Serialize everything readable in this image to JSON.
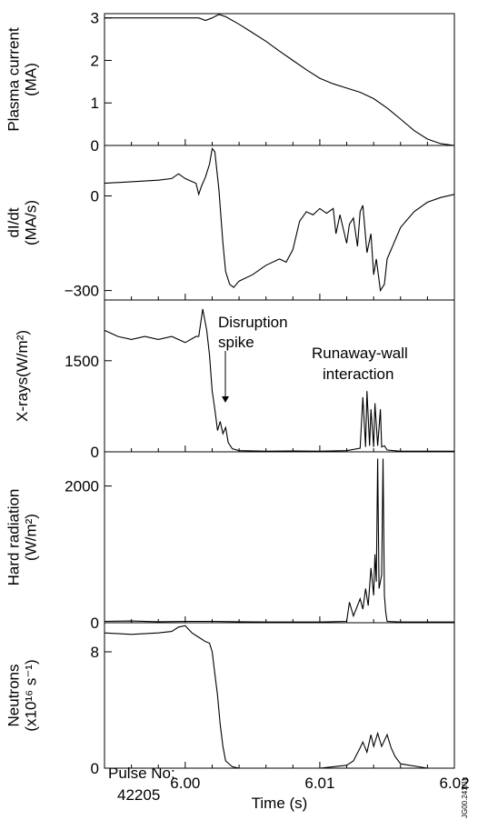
{
  "credit": "JG00.241/1c",
  "chart_data": [
    {
      "type": "line",
      "ylabel_lines": [
        "Plasma current",
        "(MA)"
      ],
      "ylim": [
        0,
        3.1
      ],
      "yticks": [
        0,
        1,
        2,
        3
      ],
      "ytick_labels": [
        "0",
        "1",
        "2",
        "3"
      ],
      "x": [
        5.994,
        5.9955,
        5.997,
        5.9985,
        6.0,
        6.001,
        6.0015,
        6.002,
        6.0025,
        6.003,
        6.004,
        6.005,
        6.006,
        6.007,
        6.008,
        6.009,
        6.01,
        6.011,
        6.012,
        6.013,
        6.014,
        6.015,
        6.016,
        6.017,
        6.018,
        6.019,
        6.02
      ],
      "values": [
        3.0,
        3.0,
        3.0,
        3.0,
        3.0,
        3.0,
        2.94,
        3.0,
        3.08,
        3.03,
        2.85,
        2.65,
        2.45,
        2.22,
        2.0,
        1.78,
        1.58,
        1.45,
        1.35,
        1.25,
        1.1,
        0.88,
        0.62,
        0.35,
        0.15,
        0.04,
        0.0
      ]
    },
    {
      "type": "line",
      "ylabel_lines": [
        "dI/dt",
        "(MA/s)"
      ],
      "ylim": [
        -330,
        160
      ],
      "yticks": [
        0,
        -300
      ],
      "ytick_labels": [
        "0",
        "−300"
      ],
      "x": [
        5.994,
        5.996,
        5.998,
        5.999,
        5.9995,
        6.0,
        6.0008,
        6.001,
        6.0012,
        6.0015,
        6.0018,
        6.002,
        6.0022,
        6.0025,
        6.0028,
        6.003,
        6.0033,
        6.0036,
        6.004,
        6.005,
        6.006,
        6.007,
        6.0075,
        6.008,
        6.0085,
        6.009,
        6.0095,
        6.01,
        6.0105,
        6.011,
        6.0112,
        6.0115,
        6.012,
        6.0122,
        6.0125,
        6.0128,
        6.013,
        6.0132,
        6.0135,
        6.0138,
        6.014,
        6.0142,
        6.0145,
        6.0148,
        6.015,
        6.016,
        6.017,
        6.018,
        6.019,
        6.02
      ],
      "values": [
        40,
        45,
        50,
        55,
        70,
        55,
        40,
        5,
        30,
        60,
        100,
        150,
        140,
        20,
        -150,
        -240,
        -280,
        -290,
        -270,
        -250,
        -220,
        -200,
        -210,
        -170,
        -80,
        -50,
        -60,
        -40,
        -55,
        -40,
        -120,
        -60,
        -150,
        -90,
        -70,
        -160,
        -50,
        -30,
        -180,
        -120,
        -250,
        -200,
        -300,
        -280,
        -200,
        -100,
        -50,
        -20,
        -5,
        5
      ]
    },
    {
      "type": "line",
      "ylabel_html": "X-rays(W/m²)",
      "ylim": [
        0,
        2500
      ],
      "yticks": [
        0,
        1500
      ],
      "ytick_labels": [
        "0",
        "1500"
      ],
      "x": [
        5.994,
        5.995,
        5.996,
        5.997,
        5.998,
        5.999,
        6.0,
        6.0008,
        6.001,
        6.0013,
        6.0016,
        6.0018,
        6.002,
        6.0022,
        6.0024,
        6.0026,
        6.0028,
        6.003,
        6.0032,
        6.0035,
        6.004,
        6.006,
        6.008,
        6.01,
        6.012,
        6.013,
        6.0132,
        6.0134,
        6.0135,
        6.0137,
        6.0138,
        6.014,
        6.0141,
        6.0143,
        6.0145,
        6.0146,
        6.0148,
        6.015,
        6.016,
        6.018,
        6.02
      ],
      "values": [
        2000,
        1900,
        1850,
        1900,
        1850,
        1900,
        1800,
        1900,
        1900,
        2350,
        2000,
        1600,
        1000,
        700,
        350,
        500,
        300,
        400,
        150,
        50,
        20,
        10,
        15,
        10,
        20,
        60,
        900,
        80,
        1000,
        100,
        700,
        80,
        800,
        100,
        700,
        80,
        100,
        30,
        10,
        10,
        10
      ]
    },
    {
      "type": "line",
      "ylabel_lines": [
        "Hard radiation"
      ],
      "ylabel_html": "(W/m²)",
      "ylim": [
        0,
        2500
      ],
      "yticks": [
        0,
        2000
      ],
      "ytick_labels": [
        "0",
        "2000"
      ],
      "x": [
        5.994,
        5.996,
        5.998,
        6.0,
        6.002,
        6.004,
        6.006,
        6.008,
        6.01,
        6.012,
        6.0122,
        6.0125,
        6.0128,
        6.013,
        6.0132,
        6.0134,
        6.0136,
        6.0138,
        6.014,
        6.0141,
        6.0142,
        6.0143,
        6.0144,
        6.0146,
        6.0147,
        6.0148,
        6.0149,
        6.015,
        6.016,
        6.018,
        6.02
      ],
      "values": [
        20,
        25,
        15,
        20,
        20,
        15,
        10,
        10,
        10,
        20,
        300,
        100,
        250,
        350,
        200,
        500,
        250,
        800,
        400,
        1000,
        600,
        2400,
        500,
        700,
        2400,
        400,
        150,
        20,
        10,
        10,
        10
      ]
    },
    {
      "type": "line",
      "ylabel_lines": [
        "Neutrons"
      ],
      "ylabel_html": "(x10¹⁶ s⁻¹)",
      "ylim": [
        0,
        10
      ],
      "yticks": [
        0,
        8
      ],
      "ytick_labels": [
        "0",
        "8"
      ],
      "x": [
        5.994,
        5.996,
        5.998,
        5.999,
        5.9995,
        6.0,
        6.0005,
        6.001,
        6.0015,
        6.0018,
        6.002,
        6.0022,
        6.0024,
        6.0026,
        6.0028,
        6.003,
        6.0035,
        6.004,
        6.008,
        6.01,
        6.011,
        6.012,
        6.0125,
        6.013,
        6.0132,
        6.0135,
        6.0138,
        6.014,
        6.0143,
        6.0146,
        6.015,
        6.0153,
        6.0156,
        6.016,
        6.018,
        6.02
      ],
      "values": [
        9.3,
        9.2,
        9.3,
        9.4,
        9.7,
        9.8,
        9.3,
        9.0,
        8.7,
        8.6,
        8.0,
        6.5,
        5.0,
        3.0,
        1.5,
        0.5,
        0.1,
        0.0,
        0.0,
        0.0,
        0.1,
        0.2,
        0.5,
        1.4,
        1.8,
        1.1,
        2.3,
        1.5,
        2.4,
        1.5,
        2.3,
        1.4,
        0.8,
        0.3,
        0.0,
        0.0
      ]
    }
  ],
  "x_axis": {
    "label": "Time (s)",
    "xlim": [
      5.994,
      6.02
    ],
    "ticks": [
      6.0,
      6.01,
      6.02
    ],
    "tick_labels": [
      "6.00",
      "6.01",
      "6.02"
    ]
  },
  "annotations": {
    "disruption": [
      "Disruption",
      "spike"
    ],
    "runaway": [
      "Runaway-wall",
      "interaction"
    ],
    "pulse": [
      "Pulse No:",
      "42205"
    ]
  }
}
